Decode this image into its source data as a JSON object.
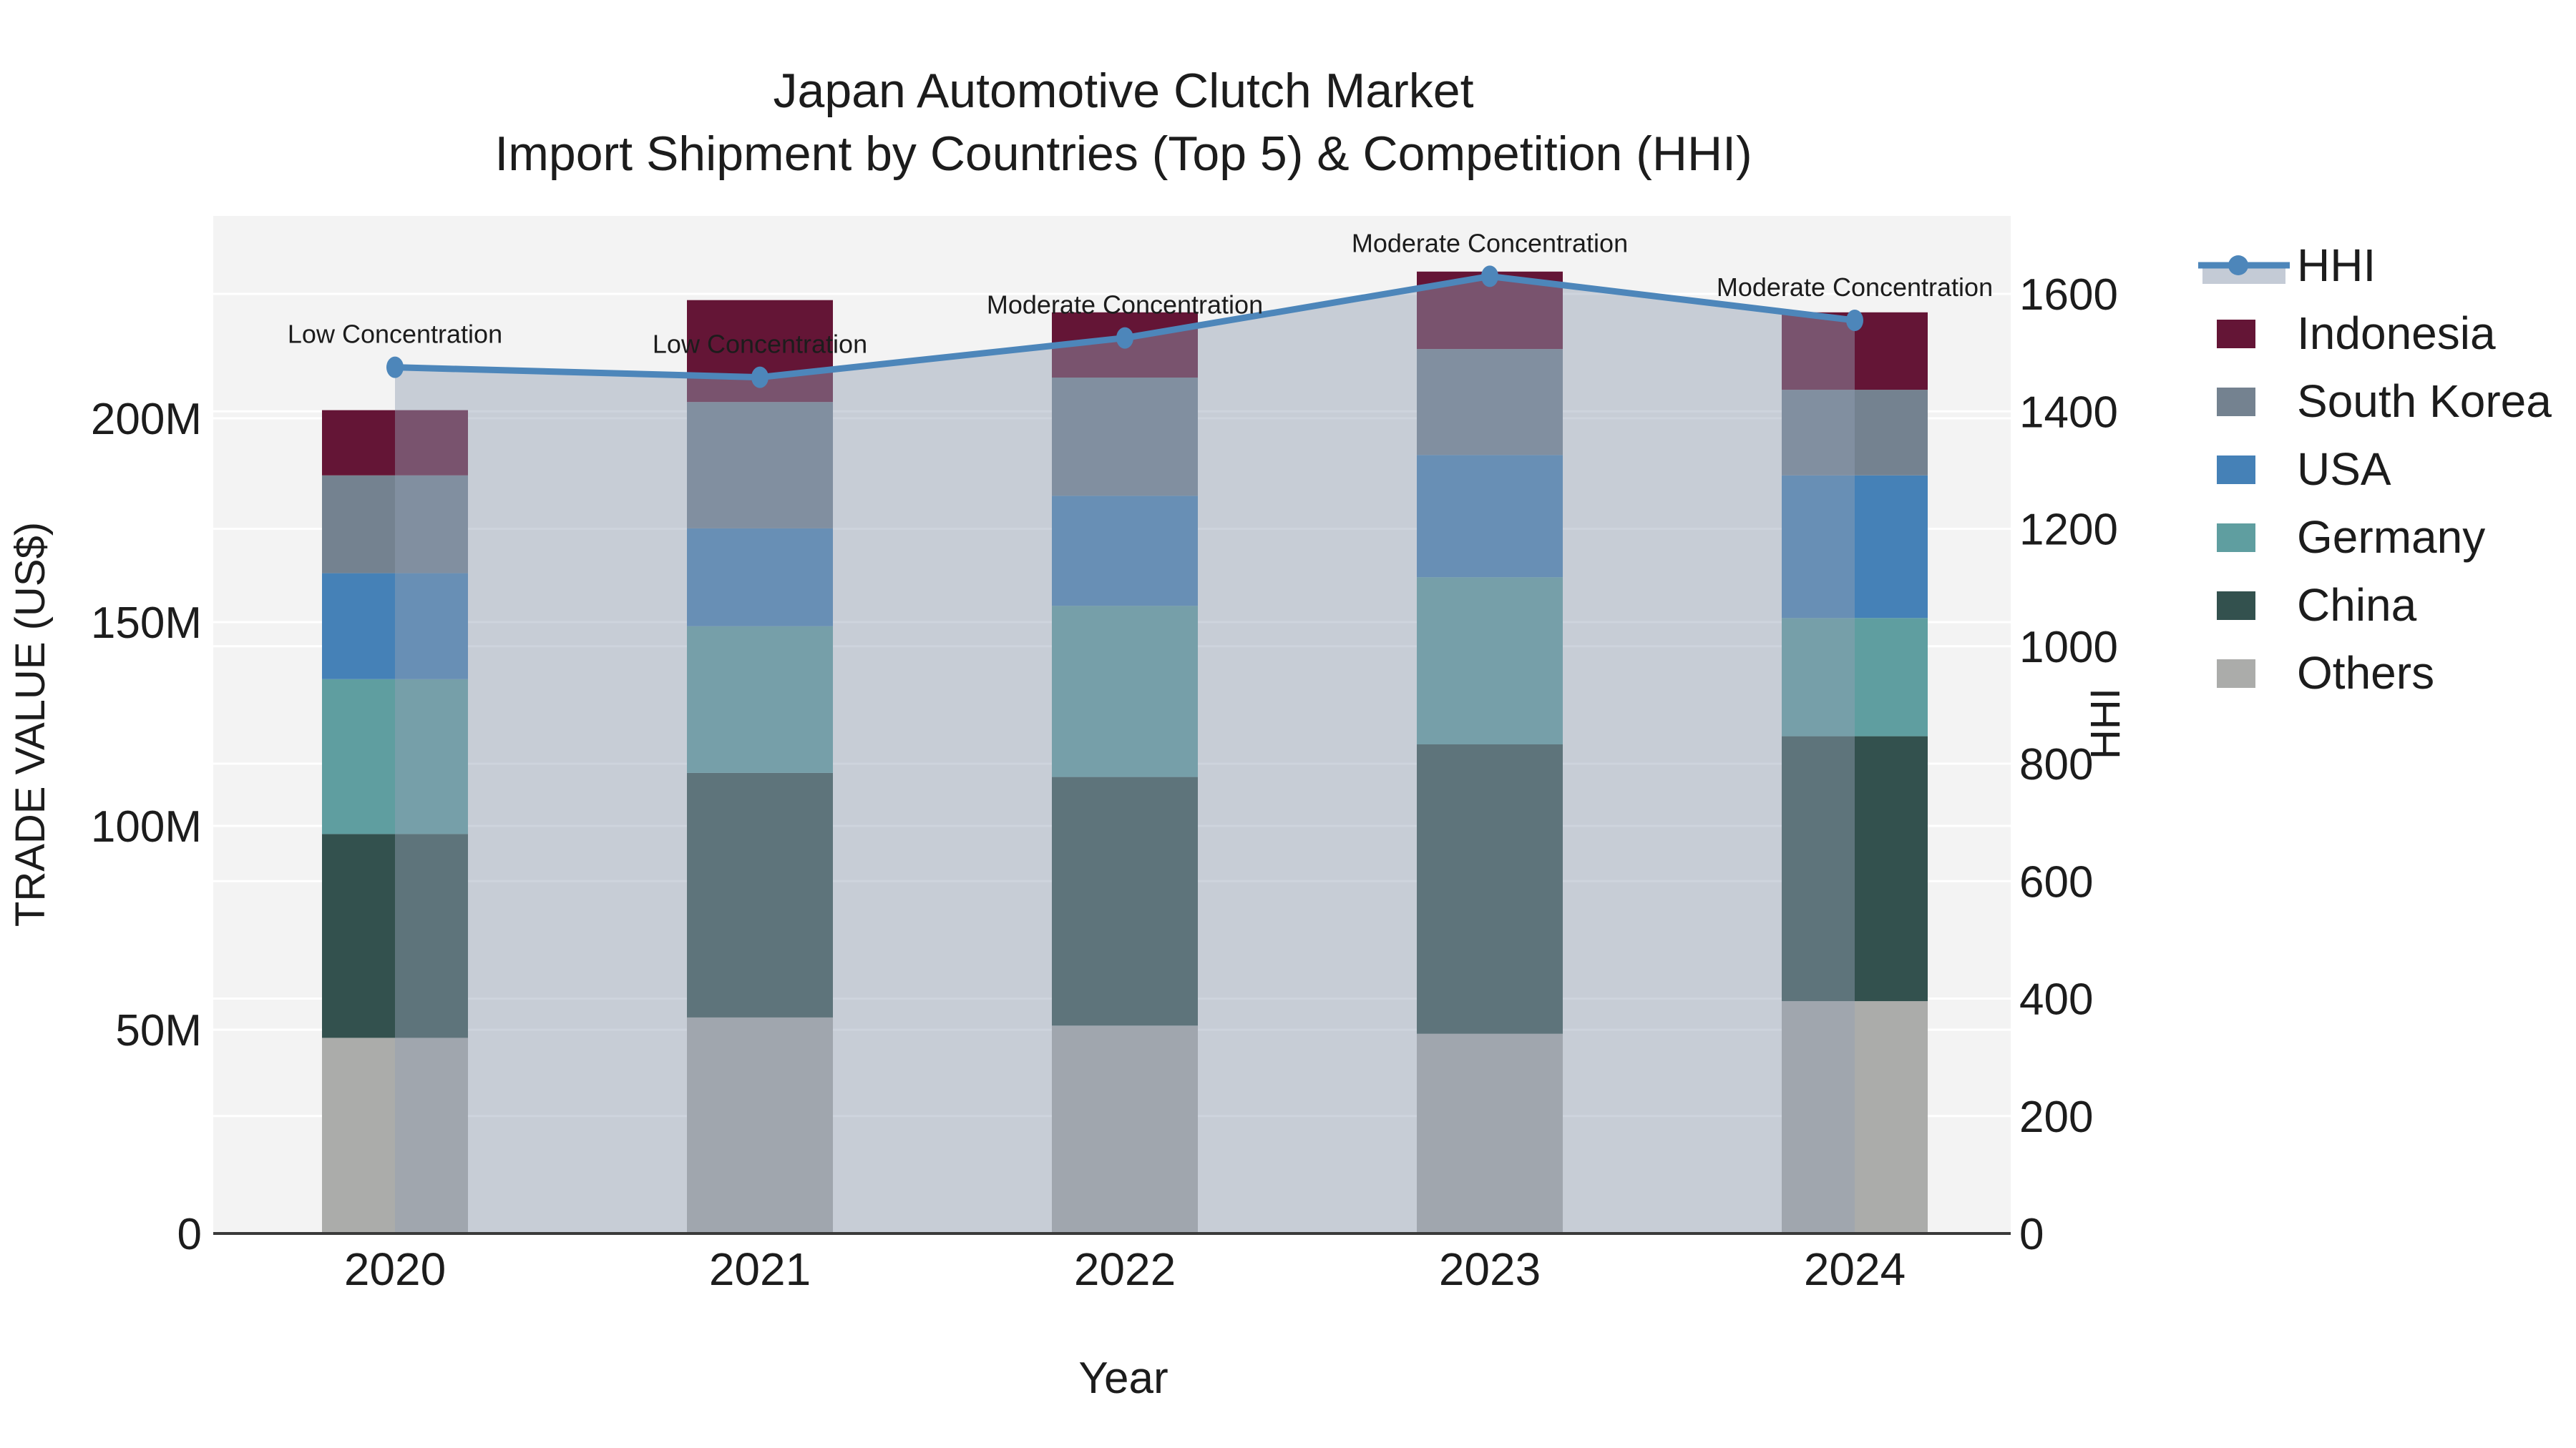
{
  "chart_data": {
    "type": "bar",
    "stacked": true,
    "title": "Japan Automotive Clutch Market",
    "subtitle": "Import Shipment by Countries (Top 5) & Competition (HHI)",
    "xlabel": "Year",
    "ylabel_left": "TRADE VALUE (US$)",
    "ylabel_right": "HHI",
    "categories": [
      "2020",
      "2021",
      "2022",
      "2023",
      "2024"
    ],
    "bar_value_unit": "million US$",
    "series": [
      {
        "name": "Others",
        "color": "#abacaa",
        "values": [
          48,
          53,
          51,
          49,
          57
        ]
      },
      {
        "name": "China",
        "color": "#33514e",
        "values": [
          50,
          60,
          61,
          71,
          65
        ]
      },
      {
        "name": "Germany",
        "color": "#5f9ea0",
        "values": [
          38,
          36,
          42,
          41,
          29
        ]
      },
      {
        "name": "USA",
        "color": "#4581b7",
        "values": [
          26,
          24,
          27,
          30,
          35
        ]
      },
      {
        "name": "South Korea",
        "color": "#748290",
        "values": [
          24,
          31,
          29,
          26,
          21
        ]
      },
      {
        "name": "Indonesia",
        "color": "#641536",
        "values": [
          16,
          25,
          16,
          19,
          19
        ]
      }
    ],
    "line_series": {
      "name": "HHI",
      "color": "#4d86ba",
      "area_fill_color": "#93a0b4",
      "area_fill_opacity": 0.45,
      "values": [
        1475,
        1458,
        1525,
        1630,
        1555
      ]
    },
    "annotations": [
      {
        "category": "2020",
        "text": "Low Concentration"
      },
      {
        "category": "2021",
        "text": "Low Concentration"
      },
      {
        "category": "2022",
        "text": "Moderate Concentration"
      },
      {
        "category": "2023",
        "text": "Moderate Concentration"
      },
      {
        "category": "2024",
        "text": "Moderate Concentration"
      }
    ],
    "axis_left": {
      "label": "TRADE VALUE (US$)",
      "ticks": [
        "0",
        "50M",
        "100M",
        "150M",
        "200M"
      ],
      "tick_values": [
        0,
        50,
        100,
        150,
        200
      ],
      "range": [
        0,
        249.6
      ]
    },
    "axis_right": {
      "label": "HHI",
      "ticks": [
        "0",
        "200",
        "400",
        "600",
        "800",
        "1000",
        "1200",
        "1400",
        "1600"
      ],
      "tick_values": [
        0,
        200,
        400,
        600,
        800,
        1000,
        1200,
        1400,
        1600
      ],
      "range": [
        0,
        1733
      ]
    },
    "legend_position": "right",
    "legend_order": [
      "HHI",
      "Indonesia",
      "South Korea",
      "USA",
      "Germany",
      "China",
      "Others"
    ],
    "grid": true
  },
  "style_colors": {
    "page_background": "#ffffff",
    "plot_background": "#f3f3f3",
    "gridline": "#ffffff",
    "axis_line": "#3a3a3a",
    "text": "#1c1c1c"
  }
}
